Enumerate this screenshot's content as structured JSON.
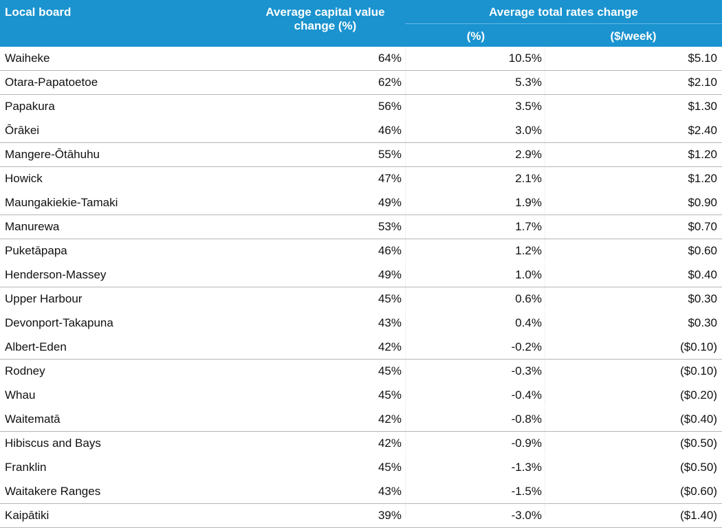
{
  "header": {
    "board": "Local board",
    "capital": "Average capital value change (%)",
    "rates": "Average total rates change",
    "pct": "(%)",
    "week": "($/week)"
  },
  "rows": [
    {
      "board": "Waiheke",
      "capital": "64%",
      "pct": "10.5%",
      "week": "$5.10",
      "sep": true
    },
    {
      "board": "Otara-Papatoetoe",
      "capital": "62%",
      "pct": "5.3%",
      "week": "$2.10",
      "sep": true
    },
    {
      "board": "Papakura",
      "capital": "56%",
      "pct": "3.5%",
      "week": "$1.30",
      "sep": false
    },
    {
      "board": "Ōrākei",
      "capital": "46%",
      "pct": "3.0%",
      "week": "$2.40",
      "sep": true
    },
    {
      "board": "Mangere-Ōtāhuhu",
      "capital": "55%",
      "pct": "2.9%",
      "week": "$1.20",
      "sep": true
    },
    {
      "board": "Howick",
      "capital": "47%",
      "pct": "2.1%",
      "week": "$1.20",
      "sep": false
    },
    {
      "board": "Maungakiekie-Tamaki",
      "capital": "49%",
      "pct": "1.9%",
      "week": "$0.90",
      "sep": true
    },
    {
      "board": "Manurewa",
      "capital": "53%",
      "pct": "1.7%",
      "week": "$0.70",
      "sep": true
    },
    {
      "board": "Puketāpapa",
      "capital": "46%",
      "pct": "1.2%",
      "week": "$0.60",
      "sep": false
    },
    {
      "board": "Henderson-Massey",
      "capital": "49%",
      "pct": "1.0%",
      "week": "$0.40",
      "sep": true
    },
    {
      "board": "Upper Harbour",
      "capital": "45%",
      "pct": "0.6%",
      "week": "$0.30",
      "sep": false
    },
    {
      "board": "Devonport-Takapuna",
      "capital": "43%",
      "pct": "0.4%",
      "week": "$0.30",
      "sep": false
    },
    {
      "board": "Albert-Eden",
      "capital": "42%",
      "pct": "-0.2%",
      "week": "($0.10)",
      "sep": true
    },
    {
      "board": "Rodney",
      "capital": "45%",
      "pct": "-0.3%",
      "week": "($0.10)",
      "sep": false
    },
    {
      "board": "Whau",
      "capital": "45%",
      "pct": "-0.4%",
      "week": "($0.20)",
      "sep": false
    },
    {
      "board": "Waitematā",
      "capital": "42%",
      "pct": "-0.8%",
      "week": "($0.40)",
      "sep": true
    },
    {
      "board": "Hibiscus and Bays",
      "capital": "42%",
      "pct": "-0.9%",
      "week": "($0.50)",
      "sep": false
    },
    {
      "board": "Franklin",
      "capital": "45%",
      "pct": "-1.3%",
      "week": "($0.50)",
      "sep": false
    },
    {
      "board": "Waitakere Ranges",
      "capital": "43%",
      "pct": "-1.5%",
      "week": "($0.60)",
      "sep": true
    },
    {
      "board": "Kaipātiki",
      "capital": "39%",
      "pct": "-3.0%",
      "week": "($1.40)",
      "sep": true
    }
  ]
}
